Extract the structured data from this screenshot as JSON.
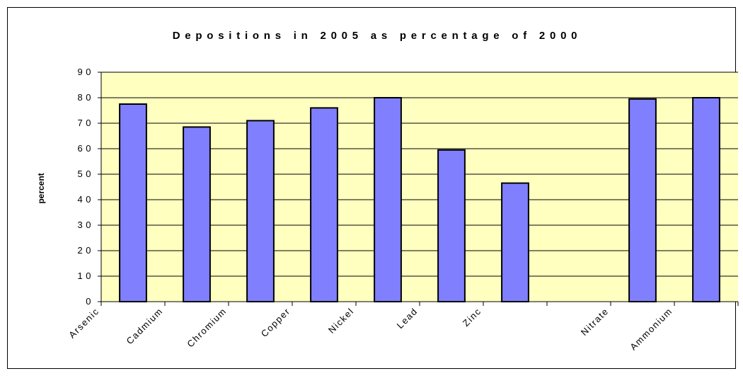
{
  "chart_data": {
    "type": "bar",
    "title": "Depositions in 2005 as percentage of 2000",
    "xlabel": "",
    "ylabel": "percent",
    "ylim": [
      0,
      90
    ],
    "yticks": [
      "0",
      "10",
      "20",
      "30",
      "40",
      "50",
      "60",
      "70",
      "80",
      "90"
    ],
    "categories": [
      "Arsenic",
      "Cadmium",
      "Chromium",
      "Copper",
      "Nickel",
      "Lead",
      "Zinc",
      "",
      "Nitrate",
      "Ammonium"
    ],
    "values": [
      77.5,
      68.5,
      71,
      76,
      80,
      59.5,
      46.5,
      null,
      79.5,
      80
    ],
    "grid": true,
    "legend": "none",
    "colors": {
      "bar": "#8080ff",
      "plot_background": "#ffffc0",
      "border": "#000000"
    }
  }
}
